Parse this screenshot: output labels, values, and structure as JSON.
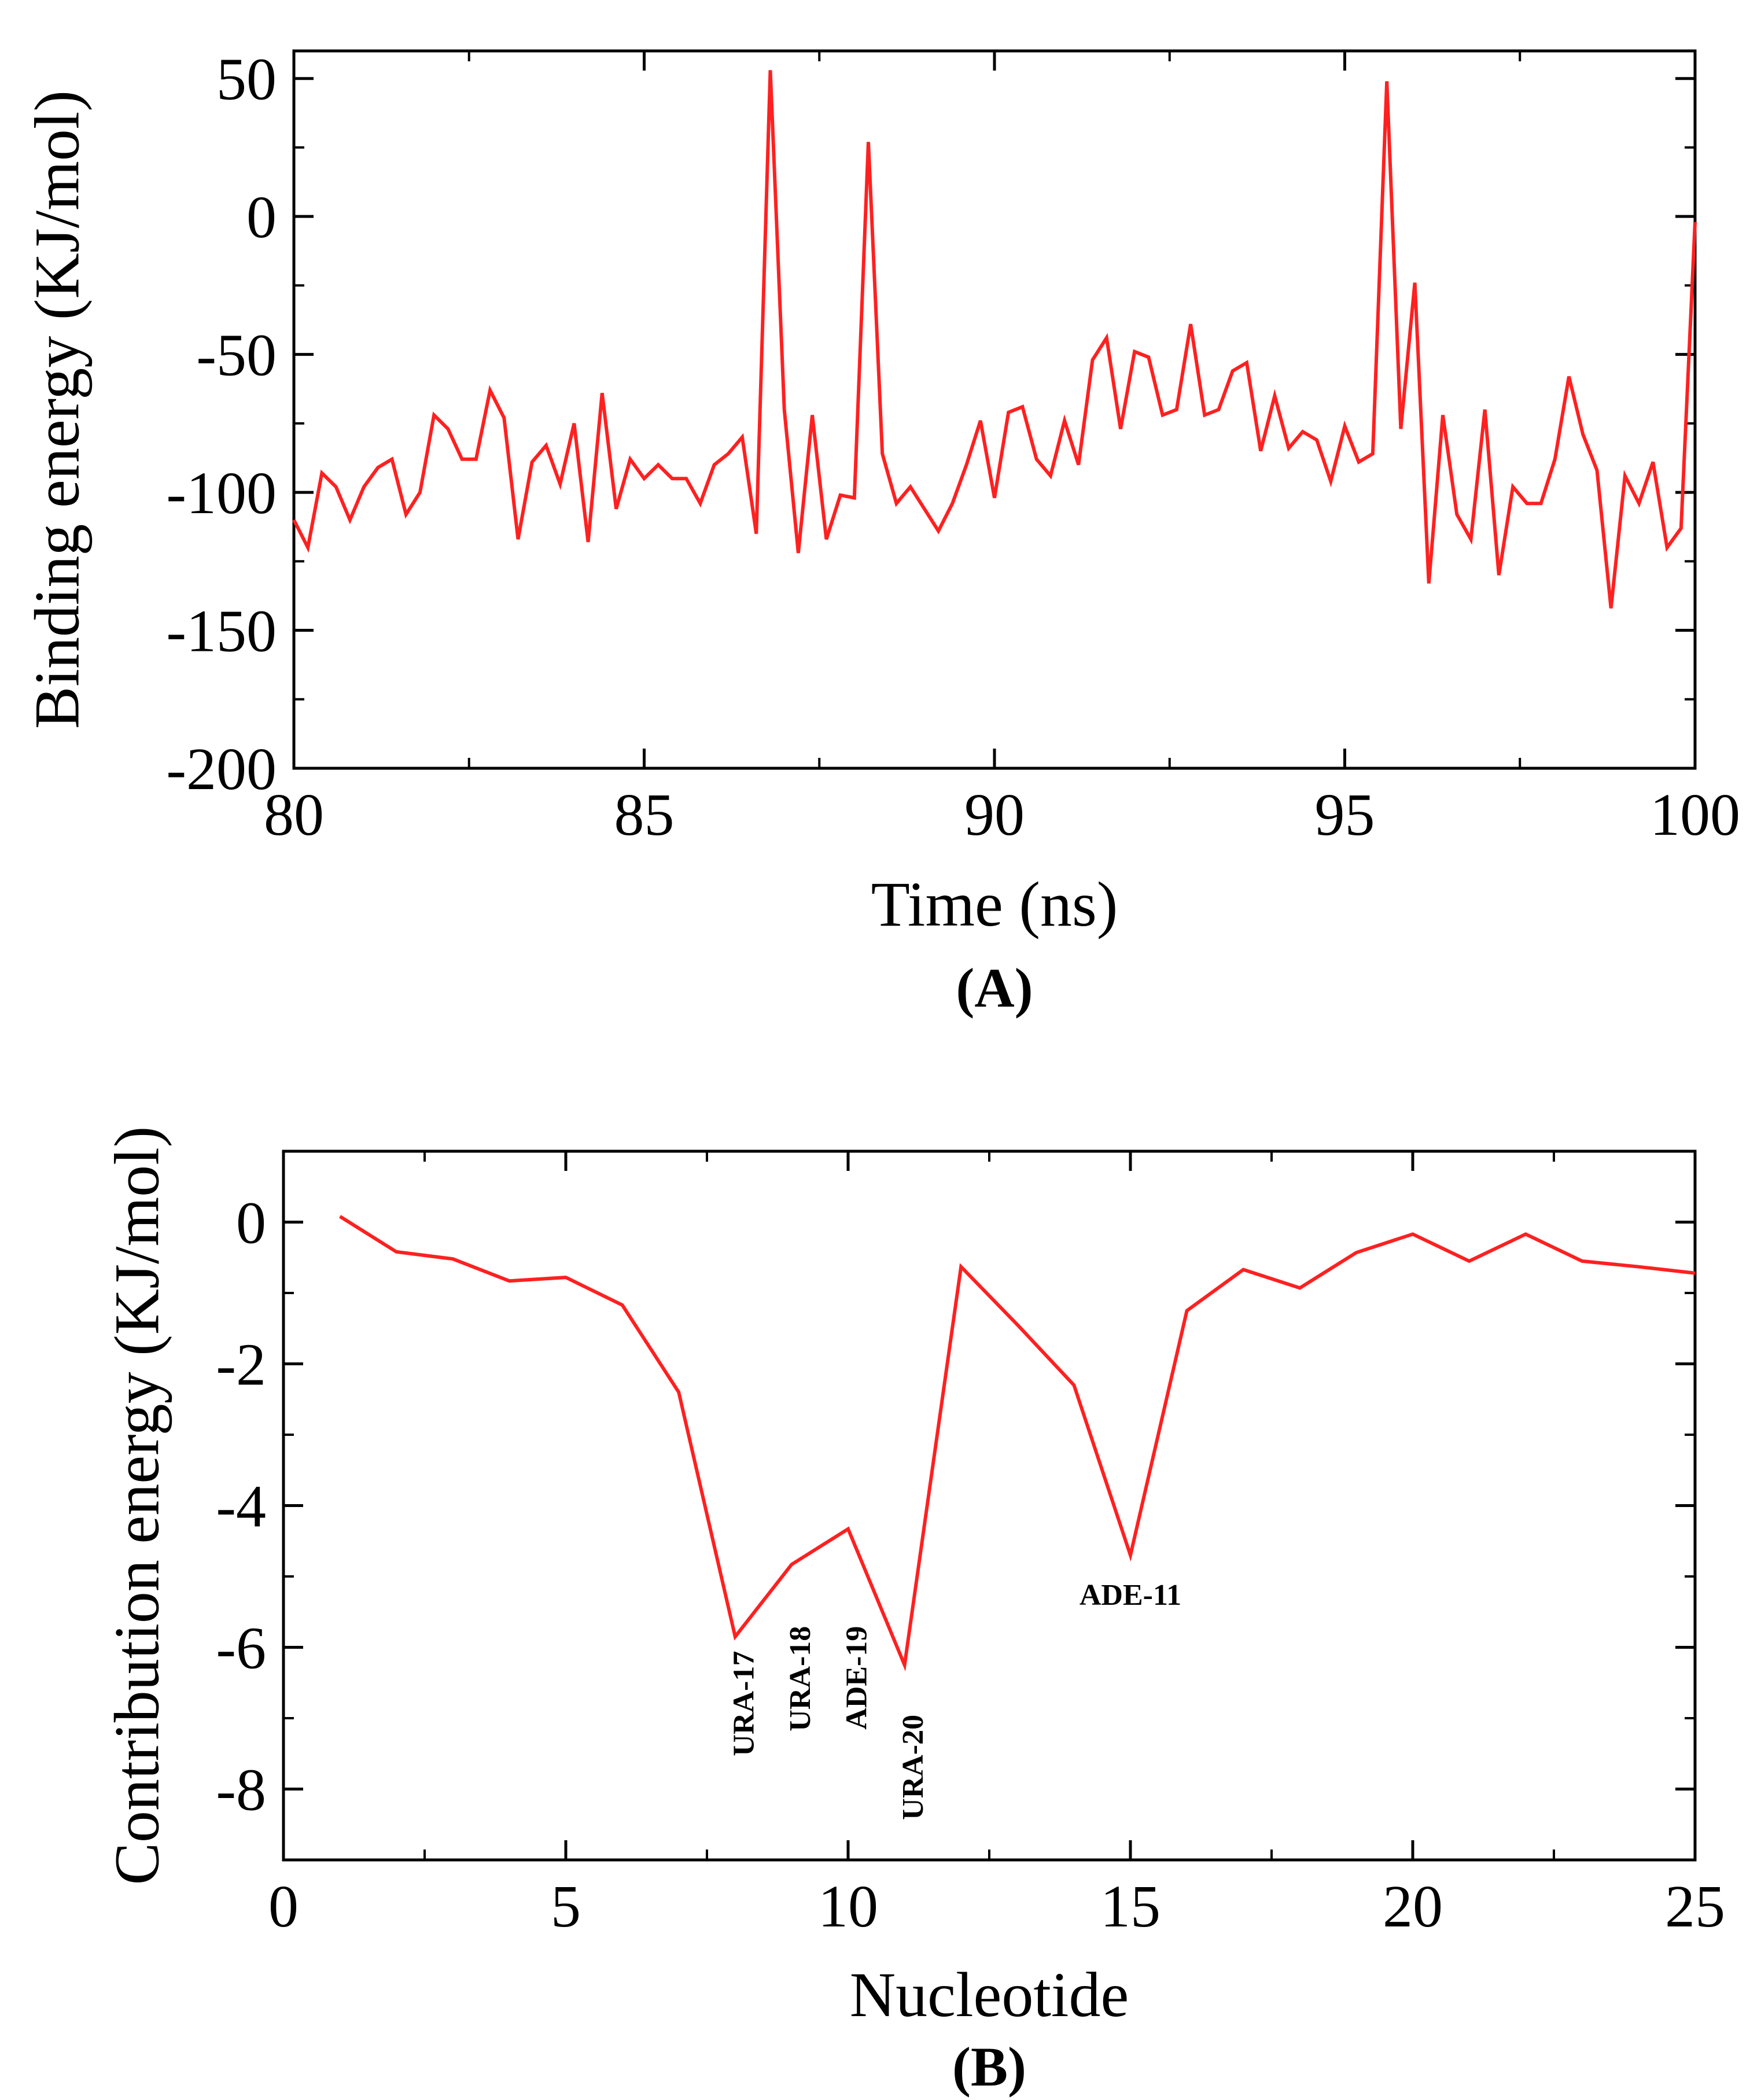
{
  "chart_data": [
    {
      "id": "A",
      "type": "line",
      "title": "",
      "panel_label": "(A)",
      "xlabel": "Time (ns)",
      "ylabel": "Binding energy (KJ/mol)",
      "xlim": [
        80,
        100
      ],
      "ylim": [
        -200,
        60
      ],
      "xticks": [
        80,
        85,
        90,
        95,
        100
      ],
      "xtick_labels": [
        "80",
        "85",
        "90",
        "95",
        "100"
      ],
      "yticks": [
        -200,
        -150,
        -100,
        -50,
        0,
        50
      ],
      "ytick_labels": [
        "-200",
        "-150",
        "-100",
        "-50",
        "0",
        "50"
      ],
      "grid": false,
      "series": [
        {
          "name": "Binding energy",
          "color": "#ff2020",
          "x": [
            80.0,
            80.2,
            80.4,
            80.6,
            80.8,
            81.0,
            81.2,
            81.4,
            81.6,
            81.8,
            82.0,
            82.2,
            82.4,
            82.6,
            82.8,
            83.0,
            83.2,
            83.4,
            83.6,
            83.8,
            84.0,
            84.2,
            84.4,
            84.6,
            84.8,
            85.0,
            85.2,
            85.4,
            85.6,
            85.8,
            86.0,
            86.2,
            86.4,
            86.6,
            86.8,
            87.0,
            87.2,
            87.4,
            87.6,
            87.8,
            88.0,
            88.2,
            88.4,
            88.6,
            88.8,
            89.0,
            89.2,
            89.4,
            89.6,
            89.8,
            90.0,
            90.2,
            90.4,
            90.6,
            90.8,
            91.0,
            91.2,
            91.4,
            91.6,
            91.8,
            92.0,
            92.2,
            92.4,
            92.6,
            92.8,
            93.0,
            93.2,
            93.4,
            93.6,
            93.8,
            94.0,
            94.2,
            94.4,
            94.6,
            94.8,
            95.0,
            95.2,
            95.4,
            95.6,
            95.8,
            96.0,
            96.2,
            96.4,
            96.6,
            96.8,
            97.0,
            97.2,
            97.4,
            97.6,
            97.8,
            98.0,
            98.2,
            98.4,
            98.6,
            98.8,
            99.0,
            99.2,
            99.4,
            99.6,
            99.8,
            100.0
          ],
          "y": [
            -110,
            -120,
            -93,
            -98,
            -110,
            -98,
            -91,
            -88,
            -108,
            -100,
            -72,
            -77,
            -88,
            -88,
            -63,
            -73,
            -117,
            -89,
            -83,
            -97,
            -75,
            -118,
            -64,
            -106,
            -88,
            -95,
            -90,
            -95,
            -95,
            -104,
            -90,
            -86,
            -80,
            -115,
            53,
            -70,
            -122,
            -72,
            -117,
            -101,
            -102,
            27,
            -86,
            -104,
            -98,
            -106,
            -114,
            -104,
            -90,
            -74,
            -102,
            -71,
            -69,
            -88,
            -94,
            -74,
            -90,
            -52,
            -44,
            -77,
            -49,
            -51,
            -72,
            -70,
            -39,
            -72,
            -70,
            -56,
            -53,
            -85,
            -65,
            -84,
            -78,
            -81,
            -96,
            -76,
            -89,
            -86,
            49,
            -77,
            -24,
            -133,
            -72,
            -108,
            -117,
            -70,
            -130,
            -98,
            -104,
            -104,
            -88,
            -58,
            -79,
            -92,
            -142,
            -94,
            -104,
            -89,
            -120,
            -113,
            -2
          ]
        }
      ]
    },
    {
      "id": "B",
      "type": "line",
      "title": "",
      "panel_label": "(B)",
      "xlabel": "Nucleotide",
      "ylabel": "Contribution energy (KJ/mol)",
      "xlim": [
        0,
        25
      ],
      "ylim": [
        -9,
        1
      ],
      "xticks": [
        0,
        5,
        10,
        15,
        20,
        25
      ],
      "xtick_labels": [
        "0",
        "5",
        "10",
        "15",
        "20",
        "25"
      ],
      "yticks": [
        -8,
        -6,
        -4,
        -2,
        0
      ],
      "ytick_labels": [
        "-8",
        "-6",
        "-4",
        "-2",
        "0"
      ],
      "grid": false,
      "series": [
        {
          "name": "Contribution energy",
          "color": "#ff2020",
          "x": [
            1,
            2,
            3,
            4,
            5,
            6,
            7,
            8,
            9,
            10,
            11,
            12,
            13,
            14,
            15,
            16,
            17,
            18,
            19,
            20,
            21,
            22,
            23,
            24,
            25
          ],
          "y": [
            0.08,
            -0.42,
            -0.52,
            -0.83,
            -0.78,
            -1.17,
            -2.4,
            -5.85,
            -4.83,
            -4.33,
            -6.25,
            -0.63,
            -1.45,
            -2.3,
            -4.7,
            -1.25,
            -0.67,
            -0.93,
            -0.43,
            -0.17,
            -0.55,
            -0.17,
            -0.55,
            -0.63,
            -0.72
          ]
        }
      ],
      "annotations": [
        {
          "text": "URA-17",
          "x": 8.2,
          "y": -6.05,
          "rotation": -90
        },
        {
          "text": "URA-18",
          "x": 9.2,
          "y": -5.7,
          "rotation": -90
        },
        {
          "text": "ADE-19",
          "x": 10.2,
          "y": -5.7,
          "rotation": -90
        },
        {
          "text": "URA-20",
          "x": 11.2,
          "y": -6.95,
          "rotation": -90
        },
        {
          "text": "ADE-11",
          "x": 15.0,
          "y": -5.4,
          "rotation": 0
        }
      ]
    }
  ]
}
